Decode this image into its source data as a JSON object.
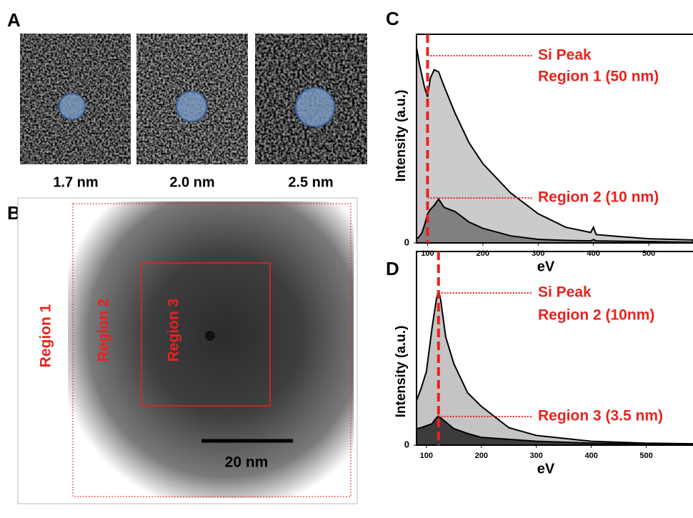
{
  "panel_a": {
    "label": "A",
    "captions": [
      "1.7 nm",
      "2.0 nm",
      "2.5 nm"
    ]
  },
  "panel_b": {
    "label": "B",
    "regions": [
      "Region 1",
      "Region 2",
      "Region 3"
    ],
    "scale_bar": "20 nm"
  },
  "chart_data": [
    {
      "type": "area",
      "label": "C",
      "ylabel": "Intensity (a.u.)",
      "xlabel": "eV",
      "annotation": "Si Peak",
      "peak_x": 100,
      "xlim": [
        80,
        580
      ],
      "xticks": [
        100,
        200,
        300,
        400,
        500
      ],
      "ylim": [
        0,
        100
      ],
      "yticks": [
        0
      ],
      "x": [
        80,
        85,
        90,
        95,
        100,
        105,
        112,
        120,
        130,
        150,
        175,
        200,
        250,
        300,
        350,
        395,
        400,
        405,
        450,
        500,
        580
      ],
      "series": [
        {
          "name": "Region 1 (50 nm)",
          "color": "#cbcbcb",
          "values": [
            94,
            86,
            80,
            74,
            70,
            79,
            83,
            82,
            75,
            62,
            48,
            38,
            24,
            14,
            7.5,
            5,
            7.5,
            4,
            3,
            2,
            1.4
          ]
        },
        {
          "name": "Region 2 (10 nm)",
          "color": "#808080",
          "values": [
            2,
            3,
            5,
            9,
            14,
            16,
            18,
            21,
            17,
            15,
            10,
            7,
            3.4,
            1.7,
            1.2,
            1,
            1.6,
            1,
            0.8,
            0.7,
            0.3
          ]
        }
      ]
    },
    {
      "type": "area",
      "label": "D",
      "ylabel": "Intensity (a.u.)",
      "xlabel": "eV",
      "annotation": "Si Peak",
      "peak_x": 122,
      "xlim": [
        82,
        585
      ],
      "xticks": [
        100,
        200,
        300,
        400,
        500
      ],
      "ylim": [
        0,
        100
      ],
      "yticks": [
        0
      ],
      "x": [
        82,
        90,
        100,
        110,
        118,
        122,
        126,
        135,
        150,
        175,
        200,
        250,
        300,
        400,
        500,
        585
      ],
      "series": [
        {
          "name": "Region 2 (10nm)",
          "color": "#c4c4c4",
          "values": [
            23,
            29,
            38,
            60,
            75,
            80,
            75,
            56,
            42,
            27,
            20,
            9,
            5,
            2,
            1,
            0.7
          ]
        },
        {
          "name": "Region 3 (3.5 nm)",
          "color": "#3c3c3c",
          "values": [
            8.5,
            9,
            10,
            11,
            14,
            15,
            14,
            12,
            8.5,
            6,
            4,
            3,
            2,
            1,
            0.6,
            0.4
          ]
        }
      ]
    }
  ]
}
